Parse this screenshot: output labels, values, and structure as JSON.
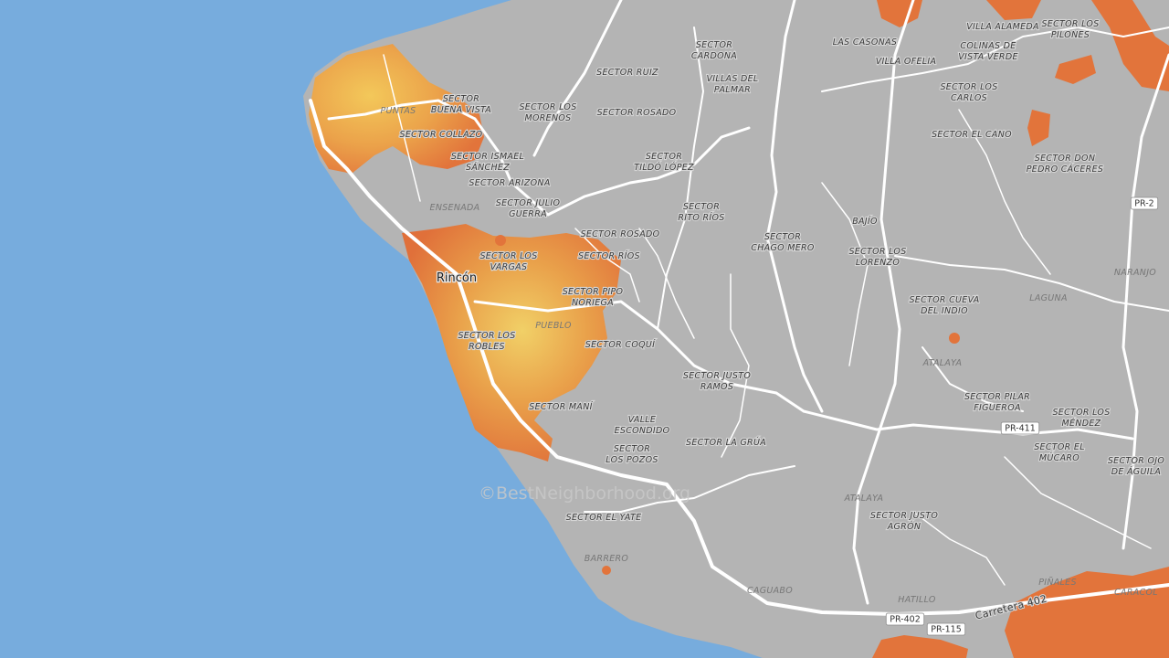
{
  "town": "Rincón",
  "watermark": "©BestNeighborhood.org",
  "places": [
    {
      "lines": [
        "SECTOR",
        "BUENA VISTA"
      ]
    },
    {
      "lines": [
        "SECTOR COLLAZO"
      ]
    },
    {
      "lines": [
        "SECTOR ISMAEL",
        "SÁNCHEZ"
      ]
    },
    {
      "lines": [
        "SECTOR ARIZONA"
      ]
    },
    {
      "lines": [
        "SECTOR JULIO",
        "GUERRA"
      ]
    },
    {
      "lines": [
        "SECTOR ROSADO"
      ]
    },
    {
      "lines": [
        "SECTOR LOS",
        "VARGAS"
      ]
    },
    {
      "lines": [
        "SECTOR RÍOS"
      ]
    },
    {
      "lines": [
        "SECTOR PIPO",
        "NORIEGA"
      ]
    },
    {
      "lines": [
        "SECTOR LOS",
        "ROBLES"
      ]
    },
    {
      "lines": [
        "SECTOR COQUÍ"
      ]
    },
    {
      "lines": [
        "SECTOR MANÍ"
      ]
    },
    {
      "lines": [
        "VALLE",
        "ESCONDIDO"
      ]
    },
    {
      "lines": [
        "SECTOR",
        "LOS POZOS"
      ]
    },
    {
      "lines": [
        "SECTOR EL YATE"
      ]
    },
    {
      "lines": [
        "SECTOR LA GRÚA"
      ]
    },
    {
      "lines": [
        "SECTOR JUSTO",
        "RAMOS"
      ]
    },
    {
      "lines": [
        "SECTOR",
        "CHAGO MERO"
      ]
    },
    {
      "lines": [
        "SECTOR",
        "RITO RÍOS"
      ]
    },
    {
      "lines": [
        "SECTOR",
        "TILDÓ LÓPEZ"
      ]
    },
    {
      "lines": [
        "SECTOR ROSADO"
      ]
    },
    {
      "lines": [
        "SECTOR LOS",
        "MORENOS"
      ]
    },
    {
      "lines": [
        "SECTOR RUIZ"
      ]
    },
    {
      "lines": [
        "SECTOR",
        "CARDONA"
      ]
    },
    {
      "lines": [
        "VILLAS DEL",
        "PALMAR"
      ]
    },
    {
      "lines": [
        "LAS CASONAS"
      ]
    },
    {
      "lines": [
        "VILLA OFELIA"
      ]
    },
    {
      "lines": [
        "VILLA ALAMEDA"
      ]
    },
    {
      "lines": [
        "COLINAS DE",
        "VISTA VERDE"
      ]
    },
    {
      "lines": [
        "SECTOR LOS",
        "PILONES"
      ]
    },
    {
      "lines": [
        "SECTOR LOS",
        "CARLOS"
      ]
    },
    {
      "lines": [
        "SECTOR EL CANO"
      ]
    },
    {
      "lines": [
        "SECTOR DON",
        "PEDRO CÁCERES"
      ]
    },
    {
      "lines": [
        "BAJÍO"
      ]
    },
    {
      "lines": [
        "SECTOR LOS",
        "LORENZO"
      ]
    },
    {
      "lines": [
        "SECTOR CUEVA",
        "DEL INDIO"
      ]
    },
    {
      "lines": [
        "SECTOR PILAR",
        "FIGUEROA"
      ]
    },
    {
      "lines": [
        "SECTOR LOS",
        "MÉNDEZ"
      ]
    },
    {
      "lines": [
        "SECTOR EL",
        "MÚCARO"
      ]
    },
    {
      "lines": [
        "SECTOR OJO",
        "DE ÁGUILA"
      ]
    },
    {
      "lines": [
        "SECTOR JUSTO",
        "AGRÓN"
      ]
    }
  ],
  "areas": [
    "PUNTAS",
    "ENSENADA",
    "PUEBLO",
    "BARRERO",
    "CAGUABO",
    "LAGUNA",
    "NARANJO",
    "ATALAYA",
    "ATALAYA",
    "HATILLO",
    "PIÑALES",
    "CARACOL"
  ],
  "road_label": "Carretera 402",
  "shields": [
    "PR-2",
    "PR-411",
    "PR-402",
    "PR-115"
  ]
}
